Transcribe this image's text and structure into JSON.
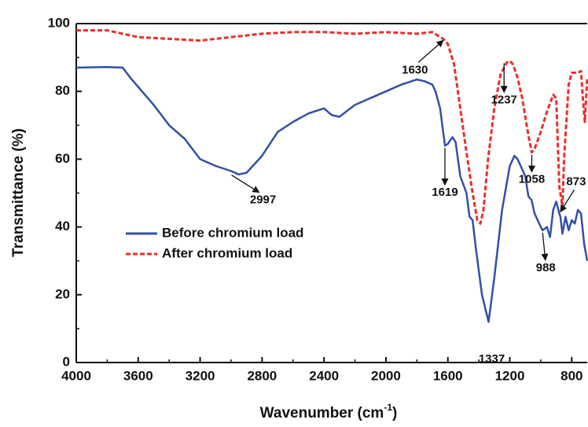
{
  "chart_data": {
    "type": "line",
    "x_label": "Wavenumber (cm",
    "x_label_superscript": "-1",
    "x_label_end": ")",
    "y_label": "Transmittance (%)",
    "xlim": [
      4000,
      700
    ],
    "xticks": [
      4000,
      3600,
      3200,
      2800,
      2400,
      2000,
      1600,
      1200,
      800
    ],
    "ylim": [
      0,
      100
    ],
    "yticks": [
      0,
      20,
      40,
      60,
      80,
      100
    ],
    "legend": "upper-left",
    "series": [
      {
        "name": "Before chromium load",
        "color": "#3350a6",
        "style": "solid",
        "x": [
          4000,
          3800,
          3700,
          3650,
          3500,
          3400,
          3300,
          3200,
          3100,
          3000,
          2950,
          2900,
          2800,
          2700,
          2600,
          2500,
          2400,
          2350,
          2300,
          2200,
          2100,
          2000,
          1900,
          1800,
          1750,
          1700,
          1680,
          1650,
          1619,
          1600,
          1570,
          1550,
          1520,
          1480,
          1460,
          1440,
          1420,
          1380,
          1337,
          1300,
          1250,
          1200,
          1170,
          1150,
          1100,
          1080,
          1060,
          1040,
          1000,
          988,
          960,
          940,
          920,
          900,
          880,
          873,
          860,
          840,
          820,
          800,
          780,
          760,
          740,
          720,
          700
        ],
        "values": [
          87,
          87.2,
          87,
          84,
          76,
          70,
          66,
          60,
          58,
          56.5,
          55.5,
          56,
          61,
          68,
          71,
          73.5,
          75,
          73,
          72.5,
          76,
          78,
          80,
          82,
          83.5,
          83,
          82,
          80,
          75,
          64,
          64.5,
          66.5,
          65,
          55,
          50,
          43,
          42,
          34,
          20,
          12,
          25,
          45,
          58,
          61,
          60,
          55,
          49,
          48,
          44,
          40,
          39,
          40,
          37,
          45,
          47.5,
          44,
          43,
          38,
          43,
          39,
          42,
          41,
          45,
          44,
          35,
          30
        ]
      },
      {
        "name": "After chromium load",
        "color": "#e8302a",
        "style": "dashed",
        "x": [
          4000,
          3800,
          3700,
          3600,
          3400,
          3200,
          3000,
          2800,
          2600,
          2400,
          2200,
          2000,
          1800,
          1700,
          1650,
          1630,
          1600,
          1560,
          1520,
          1480,
          1440,
          1410,
          1390,
          1370,
          1340,
          1300,
          1260,
          1220,
          1200,
          1180,
          1150,
          1120,
          1080,
          1058,
          1040,
          1000,
          960,
          920,
          900,
          880,
          860,
          850,
          820,
          800,
          760,
          740,
          725,
          715,
          700
        ],
        "values": [
          98,
          98,
          97,
          96,
          95.5,
          95,
          96,
          97,
          97.5,
          97.5,
          97,
          97.5,
          97,
          97.5,
          96,
          95.5,
          94,
          88,
          75,
          62,
          50,
          42,
          41,
          45,
          60,
          75,
          85,
          88.5,
          89,
          88,
          84,
          78,
          67,
          62,
          63,
          68,
          74,
          79,
          78,
          52,
          46,
          60,
          82,
          85.5,
          85.5,
          86,
          76,
          71,
          84
        ]
      }
    ],
    "annotations": [
      {
        "text": "2997",
        "x": 2997,
        "y": 56
      },
      {
        "text": "1619",
        "x": 1619,
        "y": 64
      },
      {
        "text": "1337",
        "x": 1337,
        "y": 12
      },
      {
        "text": "988",
        "x": 988,
        "y": 39
      },
      {
        "text": "873",
        "x": 873,
        "y": 44
      },
      {
        "text": "1630",
        "x": 1630,
        "y": 95.5
      },
      {
        "text": "1237",
        "x": 1237,
        "y": 89
      },
      {
        "text": "1058",
        "x": 1058,
        "y": 62
      }
    ]
  }
}
